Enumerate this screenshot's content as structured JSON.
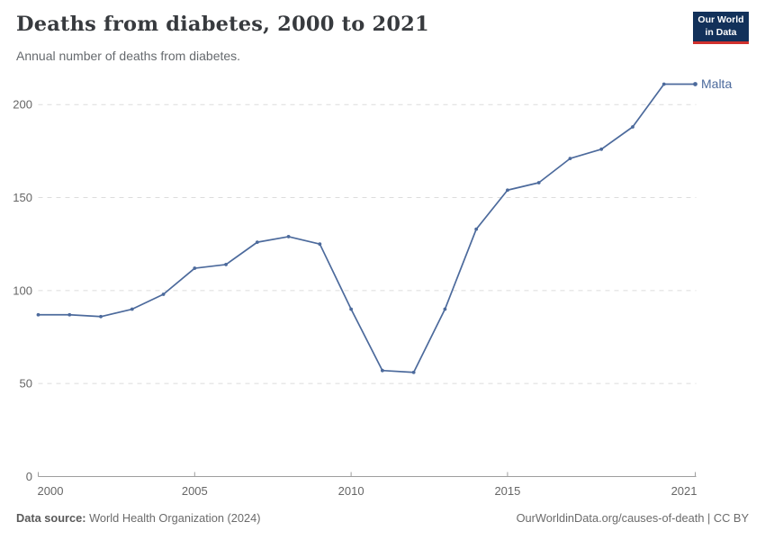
{
  "logo": {
    "line1": "Our World",
    "line2": "in Data"
  },
  "footer": {
    "source_label": "Data source:",
    "source_value": " World Health Organization (2024)",
    "link": "OurWorldinData.org/causes-of-death | CC BY"
  },
  "colors": {
    "series_line": "#4C6A9C",
    "logo_background": "#12315a",
    "logo_underline": "#d0312d",
    "gridline": "#dcdcdc",
    "axis": "#9e9e9e",
    "tick_text": "#666666",
    "title_text": "#373a3e",
    "subtitle_text": "#666a6e"
  },
  "chart_data": {
    "type": "line",
    "title": "Deaths from diabetes, 2000 to 2021",
    "subtitle": "Annual number of deaths from diabetes.",
    "xlabel": "",
    "ylabel": "",
    "x": [
      2000,
      2001,
      2002,
      2003,
      2004,
      2005,
      2006,
      2007,
      2008,
      2009,
      2010,
      2011,
      2012,
      2013,
      2014,
      2015,
      2016,
      2017,
      2018,
      2019,
      2020,
      2021
    ],
    "series": [
      {
        "name": "Malta",
        "color": "#4C6A9C",
        "values": [
          87,
          87,
          86,
          90,
          98,
          112,
          114,
          126,
          129,
          125,
          90,
          57,
          56,
          90,
          133,
          154,
          158,
          171,
          176,
          188,
          211,
          211
        ]
      }
    ],
    "xticks": [
      2000,
      2005,
      2010,
      2015,
      2021
    ],
    "yticks": [
      0,
      50,
      100,
      150,
      200
    ],
    "ylim": [
      0,
      215
    ],
    "grid": "horizontal-dashed",
    "legend_position": "end-of-line-label"
  }
}
